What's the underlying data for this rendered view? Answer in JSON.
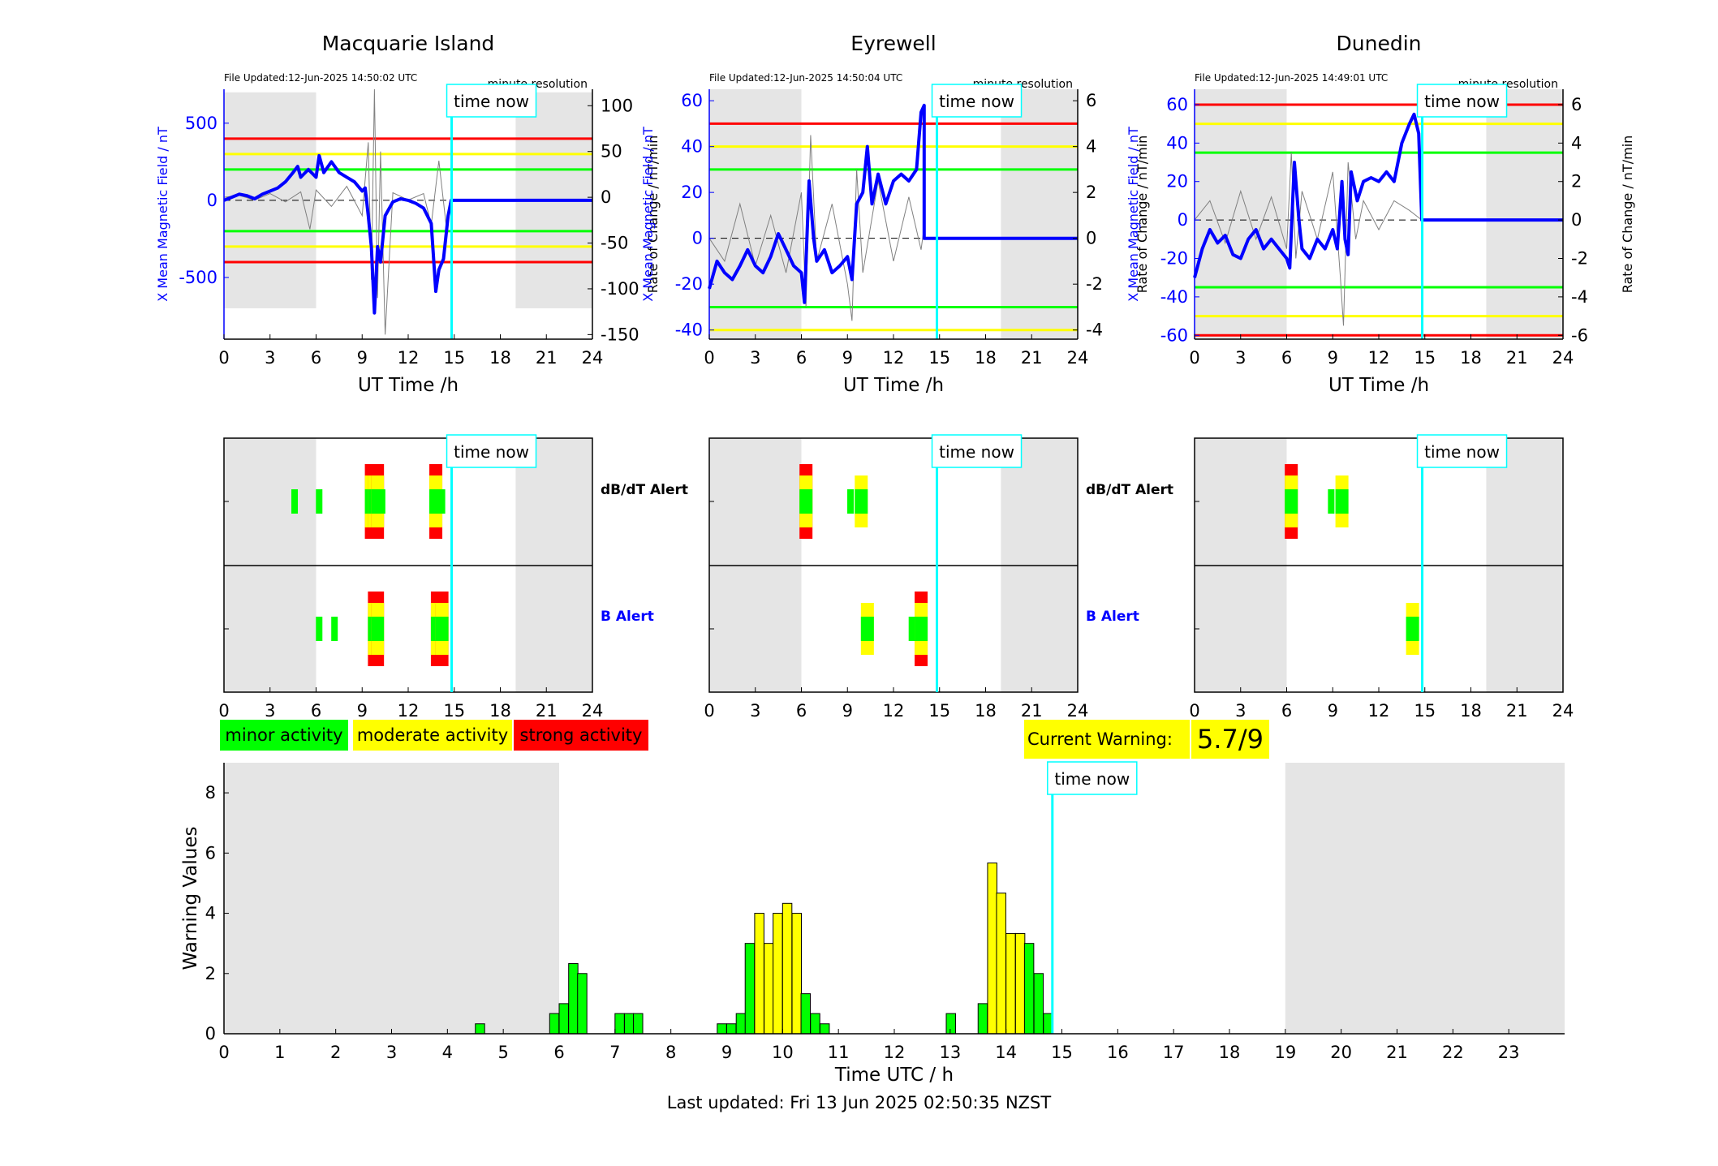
{
  "stations": [
    {
      "name": "Macquarie Island",
      "file_updated": "File Updated:12-Jun-2025 14:50:02 UTC",
      "resolution": "minute resolution",
      "left_ylabel": "X Mean Magnetic Field / nT",
      "right_ylabel": "Rate of Change / nT/min",
      "xlabel": "UT Time /h",
      "time_now_label": "time now",
      "field_ylim": [
        -900,
        720
      ],
      "field_ticks": [
        -500,
        0,
        500
      ],
      "rate_ylim": [
        -155,
        118
      ],
      "rate_ticks": [
        -150,
        -100,
        -50,
        0,
        50,
        100
      ],
      "thresholds": [
        {
          "value": 400,
          "color": "#ff0000"
        },
        {
          "value": 300,
          "color": "#ffff00"
        },
        {
          "value": 200,
          "color": "#00ff00"
        },
        {
          "value": -200,
          "color": "#00ff00"
        },
        {
          "value": -300,
          "color": "#ffff00"
        },
        {
          "value": -400,
          "color": "#ff0000"
        }
      ],
      "field_series": [
        [
          0,
          0
        ],
        [
          0.5,
          20
        ],
        [
          1,
          40
        ],
        [
          1.5,
          30
        ],
        [
          2,
          10
        ],
        [
          2.5,
          40
        ],
        [
          3,
          60
        ],
        [
          3.5,
          80
        ],
        [
          4,
          120
        ],
        [
          4.5,
          180
        ],
        [
          4.8,
          220
        ],
        [
          5,
          150
        ],
        [
          5.5,
          200
        ],
        [
          6,
          150
        ],
        [
          6.2,
          290
        ],
        [
          6.5,
          180
        ],
        [
          7,
          250
        ],
        [
          7.5,
          180
        ],
        [
          8,
          150
        ],
        [
          8.5,
          120
        ],
        [
          9,
          60
        ],
        [
          9.2,
          80
        ],
        [
          9.4,
          -100
        ],
        [
          9.6,
          -300
        ],
        [
          9.8,
          -730
        ],
        [
          10,
          -300
        ],
        [
          10.2,
          -400
        ],
        [
          10.5,
          -100
        ],
        [
          11,
          -10
        ],
        [
          11.5,
          10
        ],
        [
          12,
          0
        ],
        [
          12.5,
          -20
        ],
        [
          13,
          -50
        ],
        [
          13.5,
          -150
        ],
        [
          13.8,
          -590
        ],
        [
          14,
          -450
        ],
        [
          14.3,
          -380
        ],
        [
          14.6,
          -100
        ],
        [
          14.8,
          0
        ],
        [
          24,
          0
        ]
      ],
      "rate_series": [
        [
          0,
          0
        ],
        [
          1,
          2
        ],
        [
          2,
          -3
        ],
        [
          3,
          4
        ],
        [
          4,
          -5
        ],
        [
          5,
          6
        ],
        [
          5.6,
          -35
        ],
        [
          6,
          8
        ],
        [
          7,
          -10
        ],
        [
          8,
          12
        ],
        [
          9,
          -20
        ],
        [
          9.4,
          60
        ],
        [
          9.6,
          -90
        ],
        [
          9.8,
          118
        ],
        [
          10,
          -110
        ],
        [
          10.2,
          50
        ],
        [
          10.5,
          -150
        ],
        [
          11,
          5
        ],
        [
          12,
          -3
        ],
        [
          13,
          4
        ],
        [
          13.5,
          -30
        ],
        [
          14,
          40
        ],
        [
          14.5,
          -35
        ],
        [
          14.8,
          0
        ]
      ],
      "gray_regions": [
        [
          0,
          6
        ],
        [
          19,
          24
        ]
      ],
      "gray_ylim": [
        -700,
        700
      ],
      "alerts": {
        "dbdt": [
          {
            "hour": 4.6,
            "level": "minor"
          },
          {
            "hour": 6.2,
            "level": "minor"
          },
          {
            "hour": 9.6,
            "level": "strong"
          },
          {
            "hour": 9.8,
            "level": "strong"
          },
          {
            "hour": 10,
            "level": "strong"
          },
          {
            "hour": 10.3,
            "level": "minor"
          },
          {
            "hour": 13.8,
            "level": "strong"
          },
          {
            "hour": 14.2,
            "level": "minor"
          }
        ],
        "b": [
          {
            "hour": 6.2,
            "level": "minor"
          },
          {
            "hour": 7.2,
            "level": "minor"
          },
          {
            "hour": 9.8,
            "level": "strong"
          },
          {
            "hour": 10,
            "level": "strong"
          },
          {
            "hour": 13.9,
            "level": "strong"
          },
          {
            "hour": 14.2,
            "level": "strong"
          }
        ]
      }
    },
    {
      "name": "Eyrewell",
      "file_updated": "File Updated:12-Jun-2025 14:50:04 UTC",
      "resolution": "minute resolution",
      "left_ylabel": "X Mean Magnetic Field / nT",
      "right_ylabel": "Rate of Change / nT/min",
      "xlabel": "UT Time /h",
      "time_now_label": "time now",
      "field_ylim": [
        -44,
        65
      ],
      "field_ticks": [
        -40,
        -20,
        0,
        20,
        40,
        60
      ],
      "rate_ylim": [
        -4.4,
        6.5
      ],
      "rate_ticks": [
        -4,
        -2,
        0,
        2,
        4,
        6
      ],
      "thresholds": [
        {
          "value": 50,
          "color": "#ff0000"
        },
        {
          "value": 40,
          "color": "#ffff00"
        },
        {
          "value": 30,
          "color": "#00ff00"
        },
        {
          "value": -30,
          "color": "#00ff00"
        },
        {
          "value": -40,
          "color": "#ffff00"
        }
      ],
      "field_series": [
        [
          0,
          -22
        ],
        [
          0.5,
          -10
        ],
        [
          1,
          -15
        ],
        [
          1.5,
          -18
        ],
        [
          2,
          -12
        ],
        [
          2.5,
          -5
        ],
        [
          3,
          -12
        ],
        [
          3.5,
          -15
        ],
        [
          4,
          -8
        ],
        [
          4.5,
          2
        ],
        [
          5,
          -5
        ],
        [
          5.5,
          -12
        ],
        [
          6,
          -15
        ],
        [
          6.2,
          -28
        ],
        [
          6.5,
          25
        ],
        [
          6.8,
          0
        ],
        [
          7,
          -10
        ],
        [
          7.5,
          -5
        ],
        [
          8,
          -15
        ],
        [
          8.5,
          -12
        ],
        [
          9,
          -8
        ],
        [
          9.3,
          -18
        ],
        [
          9.6,
          15
        ],
        [
          10,
          20
        ],
        [
          10.3,
          40
        ],
        [
          10.6,
          15
        ],
        [
          11,
          28
        ],
        [
          11.5,
          15
        ],
        [
          12,
          25
        ],
        [
          12.5,
          28
        ],
        [
          13,
          25
        ],
        [
          13.5,
          30
        ],
        [
          13.8,
          55
        ],
        [
          14,
          58
        ],
        [
          14,
          0
        ],
        [
          24,
          0
        ]
      ],
      "rate_series": [
        [
          0,
          0
        ],
        [
          1,
          -1
        ],
        [
          2,
          1.5
        ],
        [
          3,
          -1.2
        ],
        [
          4,
          1
        ],
        [
          5,
          -1.5
        ],
        [
          6,
          2
        ],
        [
          6.3,
          -3
        ],
        [
          6.6,
          4.5
        ],
        [
          7,
          -1
        ],
        [
          8,
          1.5
        ],
        [
          9,
          -2
        ],
        [
          9.3,
          -3.6
        ],
        [
          9.6,
          3
        ],
        [
          10,
          -1.5
        ],
        [
          11,
          2.5
        ],
        [
          12,
          -1
        ],
        [
          13,
          1.8
        ],
        [
          13.8,
          -0.5
        ],
        [
          14,
          0.5
        ]
      ],
      "gray_regions": [
        [
          0,
          6
        ],
        [
          19,
          24
        ]
      ],
      "gray_ylim": [
        -44,
        65
      ],
      "alerts": {
        "dbdt": [
          {
            "hour": 6.3,
            "level": "strong"
          },
          {
            "hour": 9.2,
            "level": "minor"
          },
          {
            "hour": 9.9,
            "level": "moderate"
          }
        ],
        "b": [
          {
            "hour": 10.3,
            "level": "moderate"
          },
          {
            "hour": 13.2,
            "level": "minor"
          },
          {
            "hour": 13.8,
            "level": "strong"
          }
        ]
      }
    },
    {
      "name": "Dunedin",
      "file_updated": "File Updated:12-Jun-2025 14:49:01 UTC",
      "resolution": "minute resolution",
      "left_ylabel": "X Mean Magnetic Field / nT",
      "right_ylabel": "Rate of Change / nT/min",
      "xlabel": "UT Time /h",
      "time_now_label": "time now",
      "field_ylim": [
        -62,
        68
      ],
      "field_ticks": [
        -60,
        -40,
        -20,
        0,
        20,
        40,
        60
      ],
      "rate_ylim": [
        -6.2,
        6.8
      ],
      "rate_ticks": [
        -6,
        -4,
        -2,
        0,
        2,
        4,
        6
      ],
      "thresholds": [
        {
          "value": 60,
          "color": "#ff0000"
        },
        {
          "value": 50,
          "color": "#ffff00"
        },
        {
          "value": 35,
          "color": "#00ff00"
        },
        {
          "value": -35,
          "color": "#00ff00"
        },
        {
          "value": -50,
          "color": "#ffff00"
        },
        {
          "value": -60,
          "color": "#ff0000"
        }
      ],
      "field_series": [
        [
          0,
          -30
        ],
        [
          0.5,
          -15
        ],
        [
          1,
          -5
        ],
        [
          1.5,
          -12
        ],
        [
          2,
          -8
        ],
        [
          2.5,
          -18
        ],
        [
          3,
          -20
        ],
        [
          3.5,
          -10
        ],
        [
          4,
          -5
        ],
        [
          4.5,
          -15
        ],
        [
          5,
          -10
        ],
        [
          5.5,
          -15
        ],
        [
          6,
          -20
        ],
        [
          6.2,
          -25
        ],
        [
          6.5,
          30
        ],
        [
          6.8,
          0
        ],
        [
          7,
          -15
        ],
        [
          7.5,
          -20
        ],
        [
          8,
          -10
        ],
        [
          8.5,
          -15
        ],
        [
          9,
          -5
        ],
        [
          9.3,
          -15
        ],
        [
          9.6,
          20
        ],
        [
          9.8,
          -10
        ],
        [
          10,
          -18
        ],
        [
          10.2,
          25
        ],
        [
          10.6,
          10
        ],
        [
          11,
          20
        ],
        [
          11.5,
          22
        ],
        [
          12,
          20
        ],
        [
          12.5,
          25
        ],
        [
          13,
          20
        ],
        [
          13.5,
          40
        ],
        [
          14,
          50
        ],
        [
          14.3,
          55
        ],
        [
          14.6,
          45
        ],
        [
          14.8,
          0
        ],
        [
          24,
          0
        ]
      ],
      "rate_series": [
        [
          0,
          0
        ],
        [
          1,
          1
        ],
        [
          2,
          -1.2
        ],
        [
          3,
          1.5
        ],
        [
          4,
          -1
        ],
        [
          5,
          1.2
        ],
        [
          6,
          -1.5
        ],
        [
          6.3,
          3.5
        ],
        [
          6.6,
          -2
        ],
        [
          7,
          1.5
        ],
        [
          8,
          -1
        ],
        [
          9,
          2.5
        ],
        [
          9.5,
          -3
        ],
        [
          9.7,
          -5.5
        ],
        [
          10,
          3
        ],
        [
          10.5,
          -1
        ],
        [
          11,
          1
        ],
        [
          12,
          -0.5
        ],
        [
          13,
          1
        ],
        [
          14,
          0.5
        ],
        [
          14.8,
          0
        ]
      ],
      "gray_regions": [
        [
          0,
          6
        ],
        [
          19,
          24
        ]
      ],
      "gray_ylim": [
        -62,
        68
      ],
      "alerts": {
        "dbdt": [
          {
            "hour": 6.3,
            "level": "strong"
          },
          {
            "hour": 8.9,
            "level": "minor"
          },
          {
            "hour": 9.6,
            "level": "moderate"
          }
        ],
        "b": [
          {
            "hour": 14.2,
            "level": "moderate"
          }
        ]
      }
    }
  ],
  "alert_panel": {
    "dbdt_label": "dB/dT Alert",
    "b_label": "B Alert",
    "time_now_label": "time now",
    "x_ticks": [
      0,
      3,
      6,
      9,
      12,
      15,
      18,
      21,
      24
    ]
  },
  "legend": [
    {
      "label": "minor activity",
      "color": "#00ff00"
    },
    {
      "label": "moderate activity",
      "color": "#ffff00"
    },
    {
      "label": "strong activity",
      "color": "#ff0000"
    }
  ],
  "current_warning": {
    "label": "Current Warning:",
    "value": "5.7/9"
  },
  "time_now_hour": 14.83,
  "chart_data": {
    "type": "bar",
    "xlabel": "Time UTC / h",
    "ylabel": "Warning Values",
    "xlim": [
      0,
      24
    ],
    "ylim": [
      0,
      9
    ],
    "x_ticks": [
      0,
      1,
      2,
      3,
      4,
      5,
      6,
      7,
      8,
      9,
      10,
      11,
      12,
      13,
      14,
      15,
      16,
      17,
      18,
      19,
      20,
      21,
      22,
      23
    ],
    "y_ticks": [
      0,
      2,
      4,
      6,
      8
    ],
    "gray_regions": [
      [
        0,
        6
      ],
      [
        19,
        24
      ]
    ],
    "time_now_label": "time now",
    "bar_width": 0.1667,
    "colors": {
      "minor": "#00ff00",
      "moderate": "#ffff00",
      "strong": "#ff0000"
    },
    "bars": [
      {
        "x": 4.5,
        "value": 0.33,
        "level": "minor"
      },
      {
        "x": 5.83,
        "value": 0.67,
        "level": "minor"
      },
      {
        "x": 6.0,
        "value": 1.0,
        "level": "minor"
      },
      {
        "x": 6.17,
        "value": 2.33,
        "level": "minor"
      },
      {
        "x": 6.33,
        "value": 2.0,
        "level": "minor"
      },
      {
        "x": 7.0,
        "value": 0.67,
        "level": "minor"
      },
      {
        "x": 7.17,
        "value": 0.67,
        "level": "minor"
      },
      {
        "x": 7.33,
        "value": 0.67,
        "level": "minor"
      },
      {
        "x": 8.83,
        "value": 0.33,
        "level": "minor"
      },
      {
        "x": 9.0,
        "value": 0.33,
        "level": "minor"
      },
      {
        "x": 9.17,
        "value": 0.67,
        "level": "minor"
      },
      {
        "x": 9.33,
        "value": 3.0,
        "level": "minor"
      },
      {
        "x": 9.5,
        "value": 4.0,
        "level": "moderate"
      },
      {
        "x": 9.67,
        "value": 3.0,
        "level": "moderate"
      },
      {
        "x": 9.83,
        "value": 4.0,
        "level": "moderate"
      },
      {
        "x": 10.0,
        "value": 4.33,
        "level": "moderate"
      },
      {
        "x": 10.17,
        "value": 4.0,
        "level": "moderate"
      },
      {
        "x": 10.33,
        "value": 1.33,
        "level": "minor"
      },
      {
        "x": 10.5,
        "value": 0.67,
        "level": "minor"
      },
      {
        "x": 10.67,
        "value": 0.33,
        "level": "minor"
      },
      {
        "x": 12.93,
        "value": 0.67,
        "level": "minor"
      },
      {
        "x": 13.5,
        "value": 1.0,
        "level": "minor"
      },
      {
        "x": 13.67,
        "value": 5.67,
        "level": "moderate"
      },
      {
        "x": 13.83,
        "value": 4.67,
        "level": "moderate"
      },
      {
        "x": 14.0,
        "value": 3.33,
        "level": "moderate"
      },
      {
        "x": 14.17,
        "value": 3.33,
        "level": "moderate"
      },
      {
        "x": 14.33,
        "value": 3.0,
        "level": "minor"
      },
      {
        "x": 14.5,
        "value": 2.0,
        "level": "minor"
      },
      {
        "x": 14.67,
        "value": 0.67,
        "level": "minor"
      }
    ]
  },
  "last_updated": "Last updated: Fri 13 Jun 2025 02:50:35 NZST"
}
